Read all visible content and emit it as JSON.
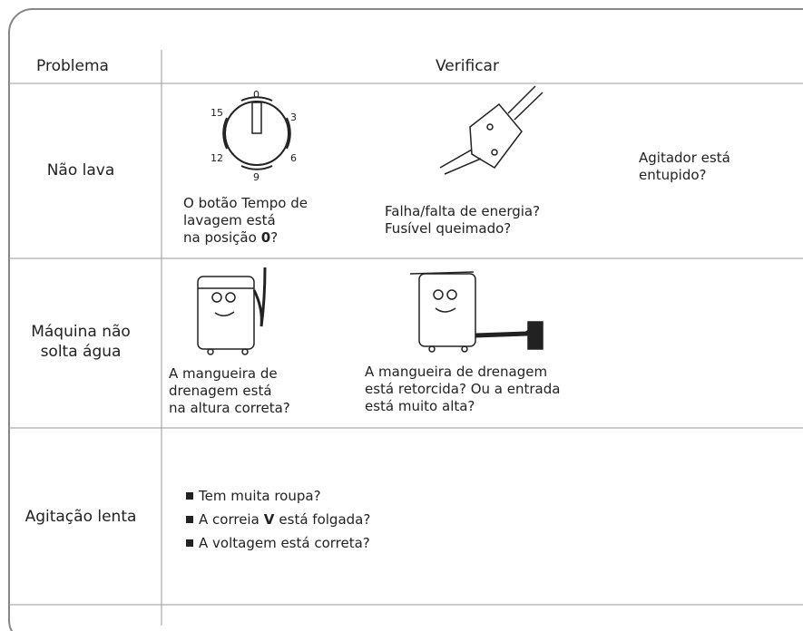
{
  "header": {
    "problem": "Problema",
    "check": "Verificar"
  },
  "rows": [
    {
      "problem_lines": [
        "Não lava"
      ],
      "checks": [
        {
          "dial_labels": [
            "0",
            "3",
            "6",
            "9",
            "12",
            "15"
          ],
          "lines": [
            "O botão Tempo de",
            "lavagem está"
          ],
          "last_line": [
            "na posição",
            "0",
            "?"
          ]
        },
        {
          "lines": [
            "Falha/falta de energia?",
            "Fusível queimado?"
          ]
        },
        {
          "lines": [
            "Agitador está",
            "entupido?"
          ]
        }
      ]
    },
    {
      "problem_lines": [
        "Máquina não",
        "solta água"
      ],
      "checks": [
        {
          "lines": [
            "A mangueira de",
            "drenagem está",
            "na altura correta?"
          ]
        },
        {
          "lines": [
            "A mangueira de drenagem",
            "está retorcida? Ou a entrada",
            "está muito alta?"
          ]
        }
      ]
    },
    {
      "problem_lines": [
        "Agitação lenta"
      ],
      "bullets": [
        [
          "Tem muita roupa?"
        ],
        [
          "A correia",
          "V",
          "está folgada?"
        ],
        [
          "A voltagem está correta?"
        ]
      ]
    }
  ]
}
